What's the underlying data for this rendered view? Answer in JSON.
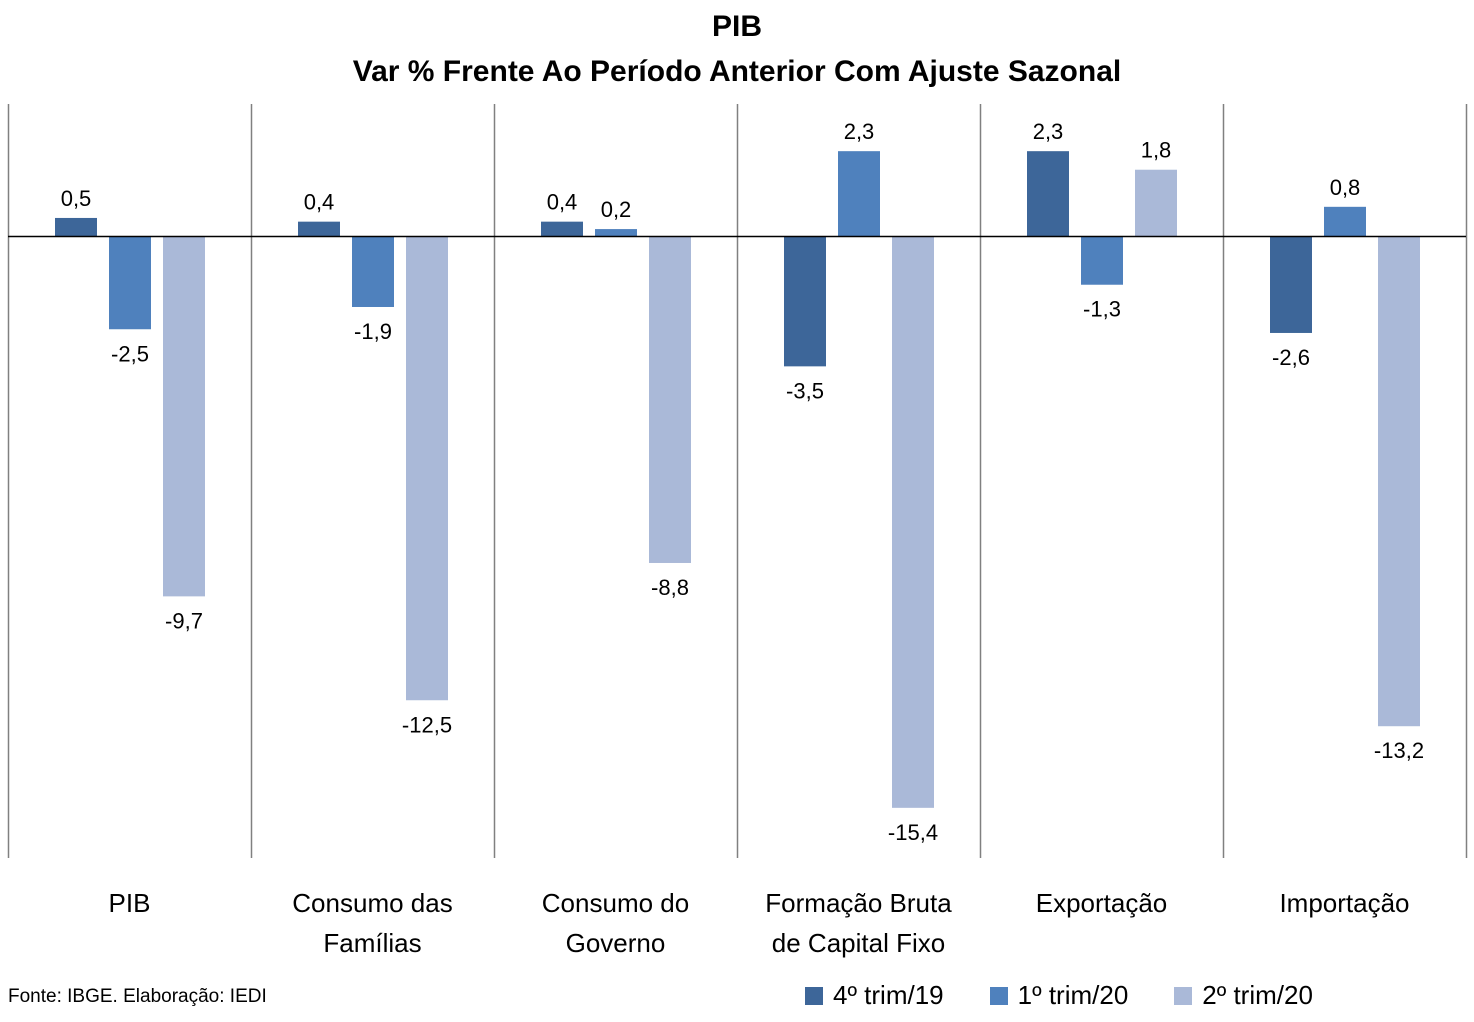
{
  "chart_data": {
    "type": "bar",
    "title": "PIB",
    "subtitle": "Var % Frente Ao Período Anterior Com Ajuste Sazonal",
    "categories": [
      [
        "PIB"
      ],
      [
        "Consumo das",
        "Famílias"
      ],
      [
        "Consumo do",
        "Governo"
      ],
      [
        "Formação Bruta",
        "de Capital Fixo"
      ],
      [
        "Exportação"
      ],
      [
        "Importação"
      ]
    ],
    "series": [
      {
        "name": "4º trim/19",
        "color": "#3d6699",
        "values": [
          0.5,
          0.4,
          0.4,
          -3.5,
          2.3,
          -2.6
        ]
      },
      {
        "name": "1º trim/20",
        "color": "#4f81bd",
        "values": [
          -2.5,
          -1.9,
          0.2,
          2.3,
          -1.3,
          0.8
        ]
      },
      {
        "name": "2º trim/20",
        "color": "#aab9d8",
        "values": [
          -9.7,
          -12.5,
          -8.8,
          -15.4,
          1.8,
          -13.2
        ]
      }
    ],
    "data_labels": [
      [
        "0,5",
        "0,4",
        "0,4",
        "-3,5",
        "2,3",
        "-2,6"
      ],
      [
        "-2,5",
        "-1,9",
        "0,2",
        "2,3",
        "-1,3",
        "0,8"
      ],
      [
        "-9,7",
        "-12,5",
        "-8,8",
        "-15,4",
        "1,8",
        "-13,2"
      ]
    ],
    "ylim": [
      -16.8,
      3.6
    ],
    "grid": false,
    "legend_position": "bottom-right"
  },
  "source_note": "Fonte: IBGE. Elaboração: IEDI"
}
